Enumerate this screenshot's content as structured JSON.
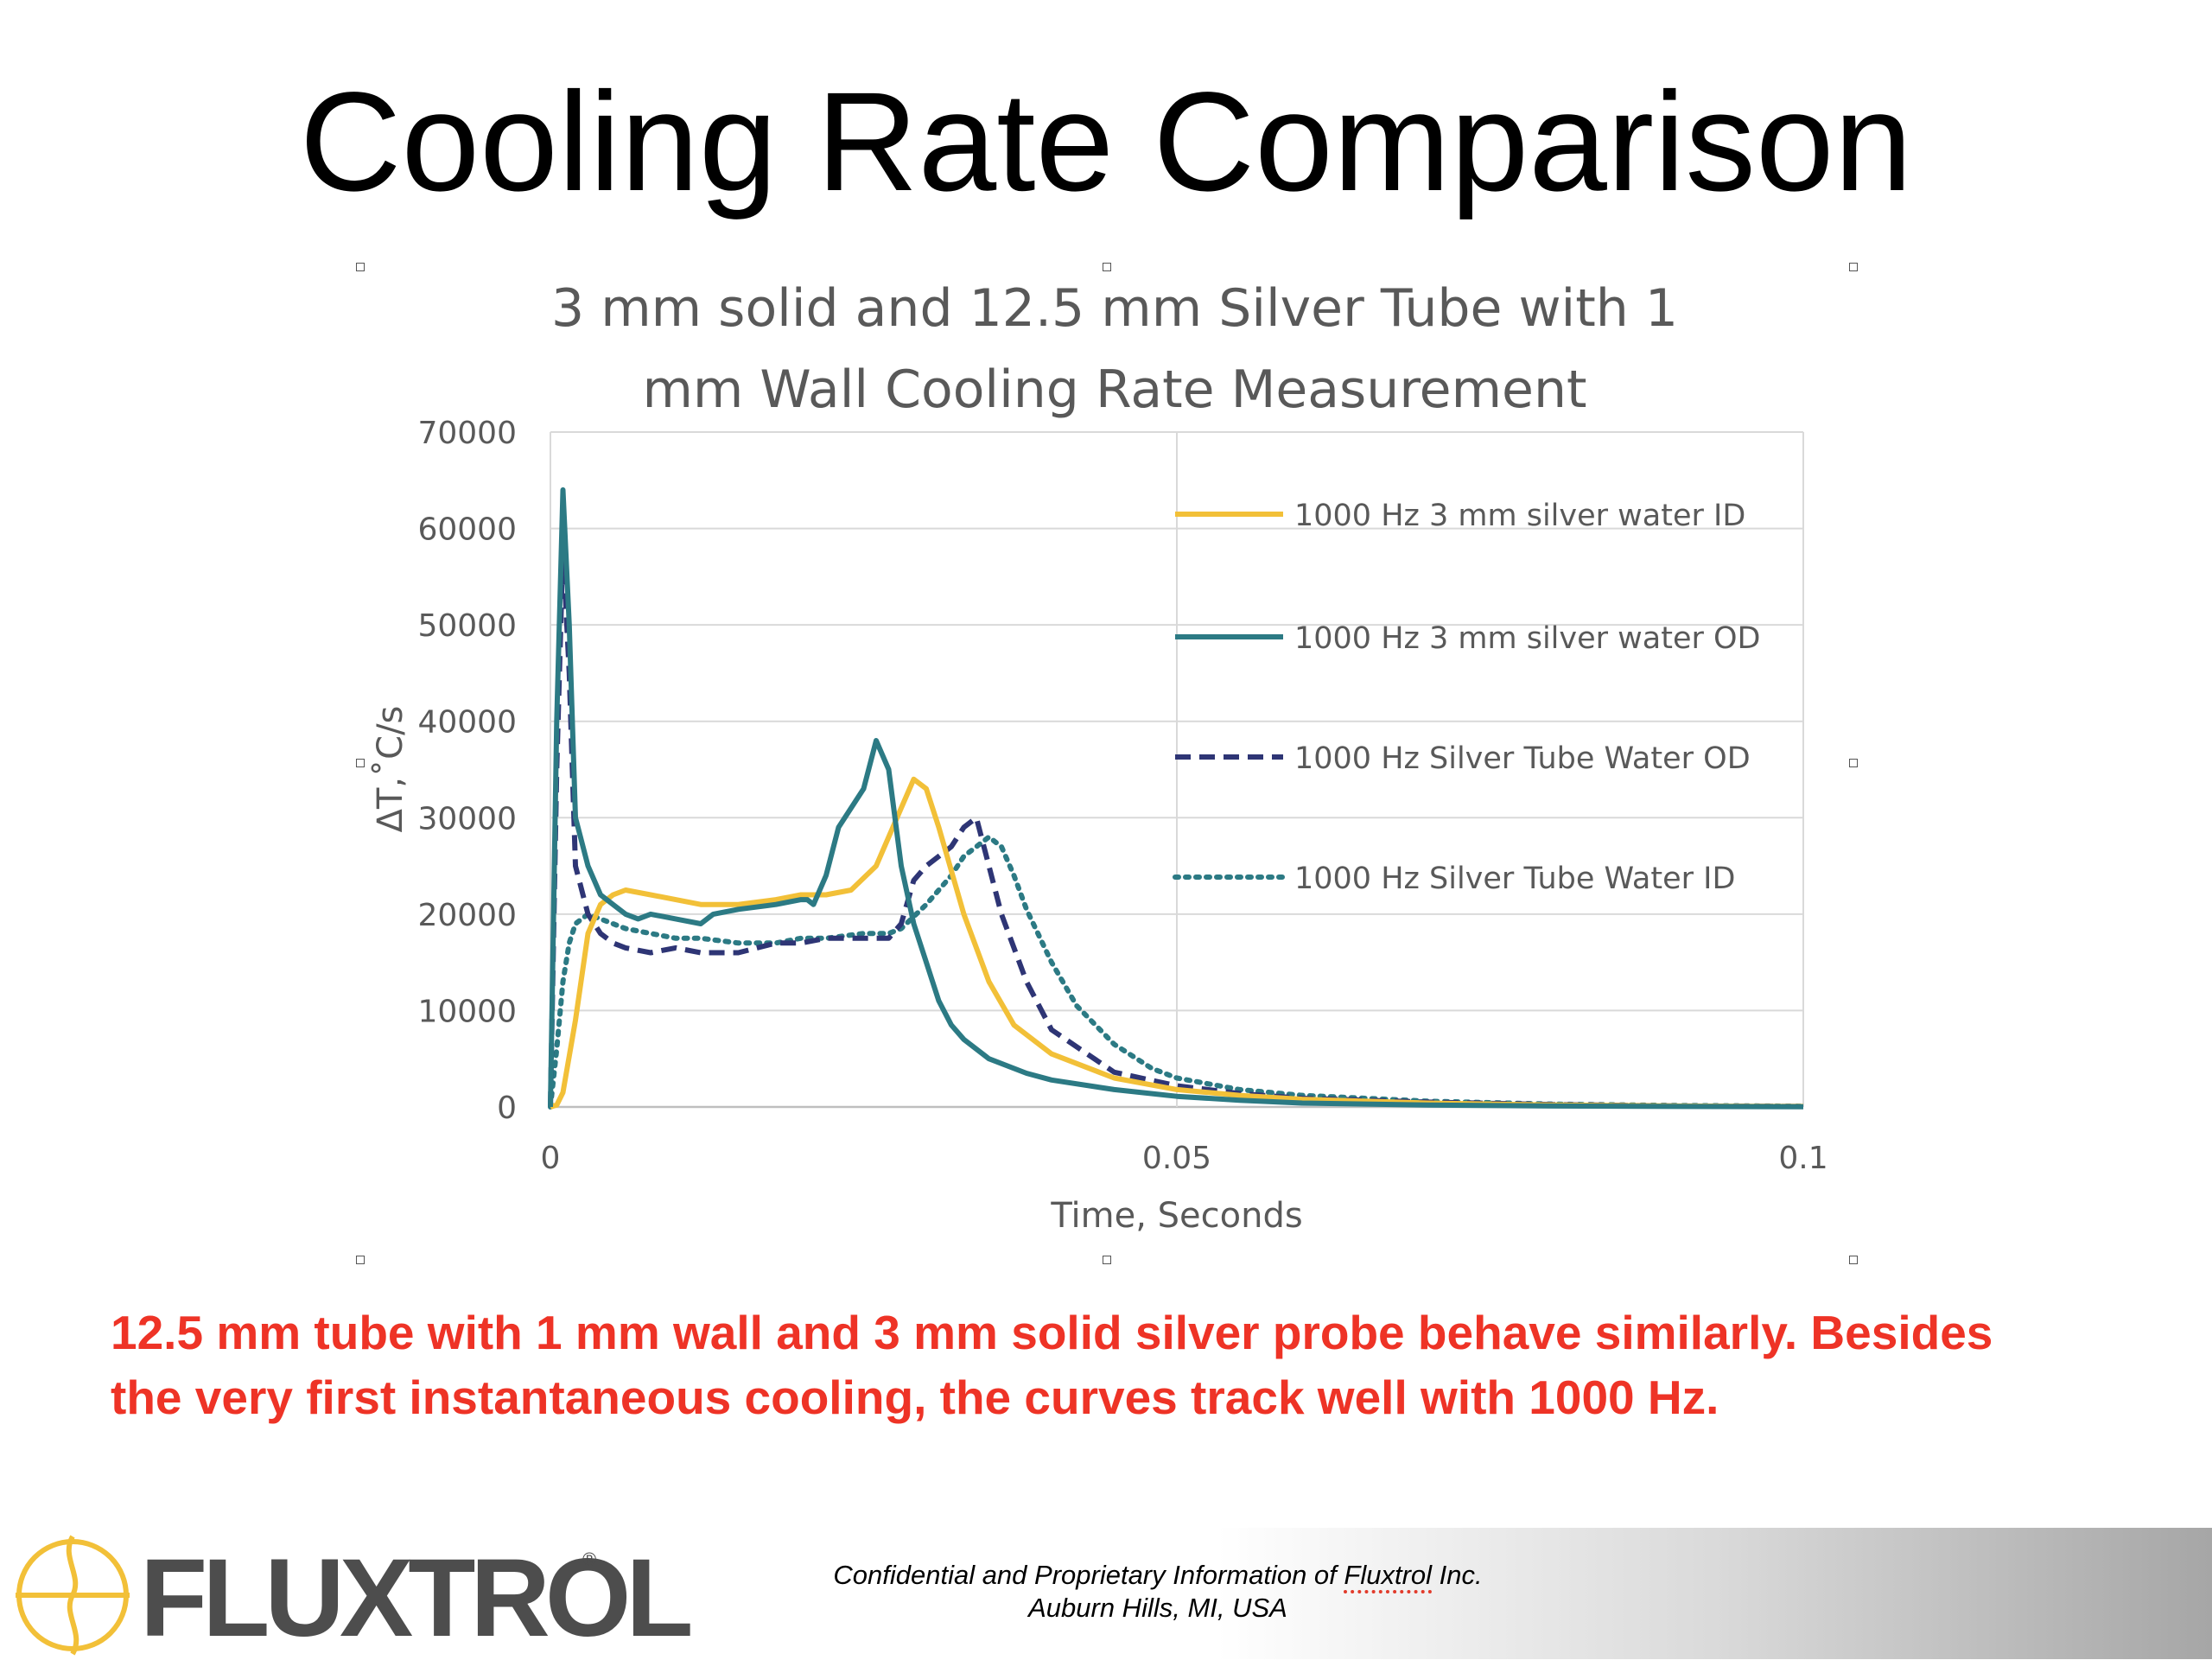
{
  "slide": {
    "title": "Cooling Rate Comparison",
    "caption": "12.5 mm tube with 1 mm wall and 3 mm solid silver probe behave similarly.  Besides the very first instantaneous cooling, the curves track well with 1000 Hz.",
    "caption_color": "#EE3326"
  },
  "footer": {
    "line1_prefix": "Confidential and Proprietary Information of ",
    "line1_company": "Fluxtrol",
    "line1_suffix": " Inc.",
    "line2": "Auburn Hills, MI, USA",
    "logo_text": "FLUXTROL",
    "logo_mark": "®"
  },
  "chart_data": {
    "type": "line",
    "title_line1": "3 mm solid and 12.5 mm Silver Tube with 1",
    "title_line2": "mm Wall Cooling Rate Measurement",
    "xlabel": "Time, Seconds",
    "ylabel": "ΔT,˚C/s",
    "xlim": [
      0,
      0.1
    ],
    "ylim": [
      0,
      70000
    ],
    "xticks": [
      0,
      0.05,
      0.1
    ],
    "xtick_labels": [
      "0",
      "0.05",
      "0.1"
    ],
    "yticks": [
      0,
      10000,
      20000,
      30000,
      40000,
      50000,
      60000,
      70000
    ],
    "ytick_labels": [
      "0",
      "10000",
      "20000",
      "30000",
      "40000",
      "50000",
      "60000",
      "70000"
    ],
    "grid": "horizontal and vertical major gridlines",
    "legend_position": "top-right",
    "series": [
      {
        "name": "1000 Hz 3 mm silver water ID",
        "color": "#F2C038",
        "dash": "solid",
        "x": [
          0,
          0.0005,
          0.001,
          0.002,
          0.003,
          0.004,
          0.005,
          0.006,
          0.008,
          0.01,
          0.012,
          0.015,
          0.018,
          0.02,
          0.022,
          0.024,
          0.026,
          0.027,
          0.028,
          0.029,
          0.03,
          0.031,
          0.033,
          0.035,
          0.037,
          0.04,
          0.045,
          0.05,
          0.055,
          0.06,
          0.07,
          0.08,
          0.09,
          0.1
        ],
        "y": [
          0,
          200,
          1500,
          9000,
          18000,
          21000,
          22000,
          22500,
          22000,
          21500,
          21000,
          21000,
          21500,
          22000,
          22000,
          22500,
          25000,
          28000,
          31000,
          34000,
          33000,
          29000,
          20000,
          13000,
          8500,
          5500,
          3000,
          1800,
          1200,
          800,
          400,
          200,
          100,
          50
        ]
      },
      {
        "name": "1000 Hz 3 mm silver water OD",
        "color": "#2C7A84",
        "dash": "solid",
        "x": [
          0,
          0.0005,
          0.001,
          0.0015,
          0.002,
          0.003,
          0.004,
          0.005,
          0.006,
          0.007,
          0.008,
          0.01,
          0.012,
          0.013,
          0.015,
          0.018,
          0.02,
          0.0205,
          0.021,
          0.022,
          0.023,
          0.025,
          0.026,
          0.027,
          0.028,
          0.029,
          0.03,
          0.031,
          0.032,
          0.033,
          0.035,
          0.038,
          0.04,
          0.045,
          0.05,
          0.055,
          0.06,
          0.07,
          0.08,
          0.09,
          0.1
        ],
        "y": [
          0,
          40000,
          64000,
          50000,
          30000,
          25000,
          22000,
          21000,
          20000,
          19500,
          20000,
          19500,
          19000,
          20000,
          20500,
          21000,
          21500,
          21500,
          21000,
          24000,
          29000,
          33000,
          38000,
          35000,
          25000,
          19000,
          15000,
          11000,
          8500,
          7000,
          5000,
          3500,
          2800,
          1800,
          1100,
          700,
          400,
          200,
          100,
          50,
          30
        ]
      },
      {
        "name": "1000 Hz Silver Tube Water OD",
        "color": "#2E3575",
        "dash": "dashed",
        "x": [
          0,
          0.0005,
          0.001,
          0.0015,
          0.002,
          0.003,
          0.004,
          0.005,
          0.006,
          0.008,
          0.01,
          0.012,
          0.015,
          0.018,
          0.02,
          0.022,
          0.024,
          0.026,
          0.027,
          0.028,
          0.029,
          0.03,
          0.032,
          0.033,
          0.034,
          0.035,
          0.036,
          0.038,
          0.04,
          0.045,
          0.05,
          0.055,
          0.06,
          0.07,
          0.08,
          0.09,
          0.1
        ],
        "y": [
          0,
          35000,
          58000,
          45000,
          25000,
          20000,
          18000,
          17000,
          16500,
          16000,
          16500,
          16000,
          16000,
          17000,
          17000,
          17500,
          17500,
          17500,
          17500,
          19000,
          23500,
          25000,
          27000,
          29000,
          30000,
          25000,
          20000,
          13000,
          8000,
          3600,
          2200,
          1400,
          900,
          500,
          250,
          100,
          50
        ]
      },
      {
        "name": "1000 Hz Silver Tube Water ID",
        "color": "#2C7A84",
        "dash": "dotted",
        "x": [
          0,
          0.0005,
          0.001,
          0.0015,
          0.002,
          0.003,
          0.004,
          0.005,
          0.006,
          0.008,
          0.01,
          0.012,
          0.015,
          0.018,
          0.02,
          0.022,
          0.025,
          0.027,
          0.028,
          0.03,
          0.032,
          0.033,
          0.034,
          0.035,
          0.036,
          0.037,
          0.038,
          0.04,
          0.042,
          0.045,
          0.048,
          0.05,
          0.055,
          0.06,
          0.07,
          0.08,
          0.09,
          0.1
        ],
        "y": [
          0,
          6000,
          13000,
          17000,
          19000,
          20000,
          19500,
          19000,
          18500,
          18000,
          17500,
          17500,
          17000,
          17000,
          17500,
          17500,
          18000,
          18000,
          18500,
          21000,
          24000,
          26000,
          27000,
          28000,
          27000,
          24000,
          20500,
          15000,
          10500,
          6500,
          4000,
          3000,
          1800,
          1200,
          600,
          300,
          150,
          80
        ]
      }
    ]
  }
}
